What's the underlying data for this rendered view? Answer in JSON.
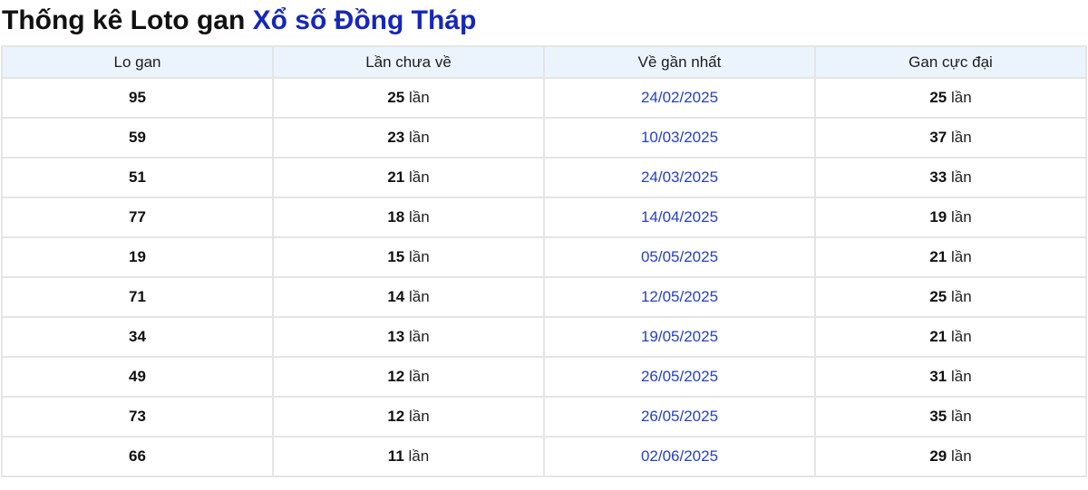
{
  "page": {
    "title_prefix": "Thống kê Loto gan ",
    "title_highlight": "Xổ số Đồng Tháp"
  },
  "colors": {
    "title_highlight_blue": "#1627b8",
    "date_link_blue": "#2440c9",
    "header_background": "#ebf4fc",
    "grid_border": "#e5e5e5"
  },
  "table": {
    "headers": [
      "Lo gan",
      "Lần chưa về",
      "Về gần nhất",
      "Gan cực đại"
    ],
    "unit": "lần",
    "rows": [
      {
        "lo_gan": "95",
        "lan_chua_ve": "25",
        "ve_gan_nhat": "24/02/2025",
        "gan_cuc_dai": "25"
      },
      {
        "lo_gan": "59",
        "lan_chua_ve": "23",
        "ve_gan_nhat": "10/03/2025",
        "gan_cuc_dai": "37"
      },
      {
        "lo_gan": "51",
        "lan_chua_ve": "21",
        "ve_gan_nhat": "24/03/2025",
        "gan_cuc_dai": "33"
      },
      {
        "lo_gan": "77",
        "lan_chua_ve": "18",
        "ve_gan_nhat": "14/04/2025",
        "gan_cuc_dai": "19"
      },
      {
        "lo_gan": "19",
        "lan_chua_ve": "15",
        "ve_gan_nhat": "05/05/2025",
        "gan_cuc_dai": "21"
      },
      {
        "lo_gan": "71",
        "lan_chua_ve": "14",
        "ve_gan_nhat": "12/05/2025",
        "gan_cuc_dai": "25"
      },
      {
        "lo_gan": "34",
        "lan_chua_ve": "13",
        "ve_gan_nhat": "19/05/2025",
        "gan_cuc_dai": "21"
      },
      {
        "lo_gan": "49",
        "lan_chua_ve": "12",
        "ve_gan_nhat": "26/05/2025",
        "gan_cuc_dai": "31"
      },
      {
        "lo_gan": "73",
        "lan_chua_ve": "12",
        "ve_gan_nhat": "26/05/2025",
        "gan_cuc_dai": "35"
      },
      {
        "lo_gan": "66",
        "lan_chua_ve": "11",
        "ve_gan_nhat": "02/06/2025",
        "gan_cuc_dai": "29"
      }
    ]
  }
}
